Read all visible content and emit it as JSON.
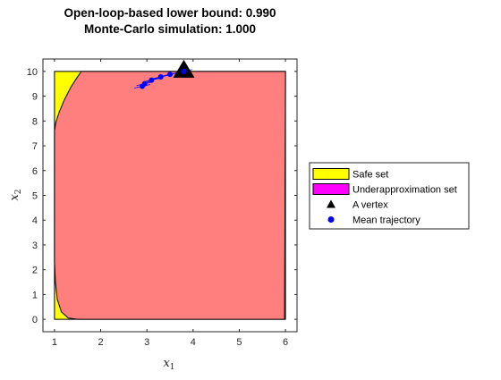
{
  "chart_data": {
    "type": "area",
    "title_lines": [
      "Open-loop-based lower bound: 0.990",
      "Monte-Carlo simulation: 1.000"
    ],
    "xlabel": "x",
    "xlabel_sub": "1",
    "ylabel": "x",
    "ylabel_sub": "2",
    "xlim": [
      0.75,
      6.25
    ],
    "ylim": [
      -0.5,
      10.5
    ],
    "xticks": [
      1,
      2,
      3,
      4,
      5,
      6
    ],
    "yticks": [
      0,
      1,
      2,
      3,
      4,
      5,
      6,
      7,
      8,
      9,
      10
    ],
    "grid": false,
    "legend_position": "east-outside",
    "colors": {
      "safe_set": "#ffff00",
      "underapprox_legend": "#ff00ff",
      "underapprox_fill": "#ff7f7f",
      "vertex": "#000000",
      "trajectory": "#0000ff"
    },
    "safe_set": {
      "x": [
        1,
        6,
        6,
        1
      ],
      "y": [
        0,
        0,
        10,
        10
      ]
    },
    "underapproximation_set": {
      "x": [
        1.58,
        6.0,
        6.0,
        5.98,
        1.5,
        1.3,
        1.15,
        1.06,
        1.02,
        1.0,
        1.0,
        1.03,
        1.1,
        1.2,
        1.35,
        1.47,
        1.58
      ],
      "y": [
        10.0,
        10.0,
        9.5,
        0.0,
        0.0,
        0.05,
        0.3,
        0.8,
        1.5,
        2.3,
        7.6,
        7.95,
        8.35,
        8.8,
        9.35,
        9.7,
        10.0
      ]
    },
    "vertex": {
      "x": [
        3.8
      ],
      "y": [
        10.0
      ]
    },
    "mean_trajectory": {
      "x": [
        3.8,
        3.5,
        3.3,
        3.1,
        2.95,
        2.9
      ],
      "y": [
        10.0,
        9.88,
        9.78,
        9.65,
        9.5,
        9.4
      ]
    },
    "legend": [
      {
        "label": "Safe set",
        "kind": "patch",
        "color_key": "safe_set"
      },
      {
        "label": "Underapproximation set",
        "kind": "patch",
        "color_key": "underapprox_legend"
      },
      {
        "label": "A vertex",
        "kind": "triangle",
        "color_key": "vertex"
      },
      {
        "label": "Mean trajectory",
        "kind": "dot",
        "color_key": "trajectory"
      }
    ]
  }
}
